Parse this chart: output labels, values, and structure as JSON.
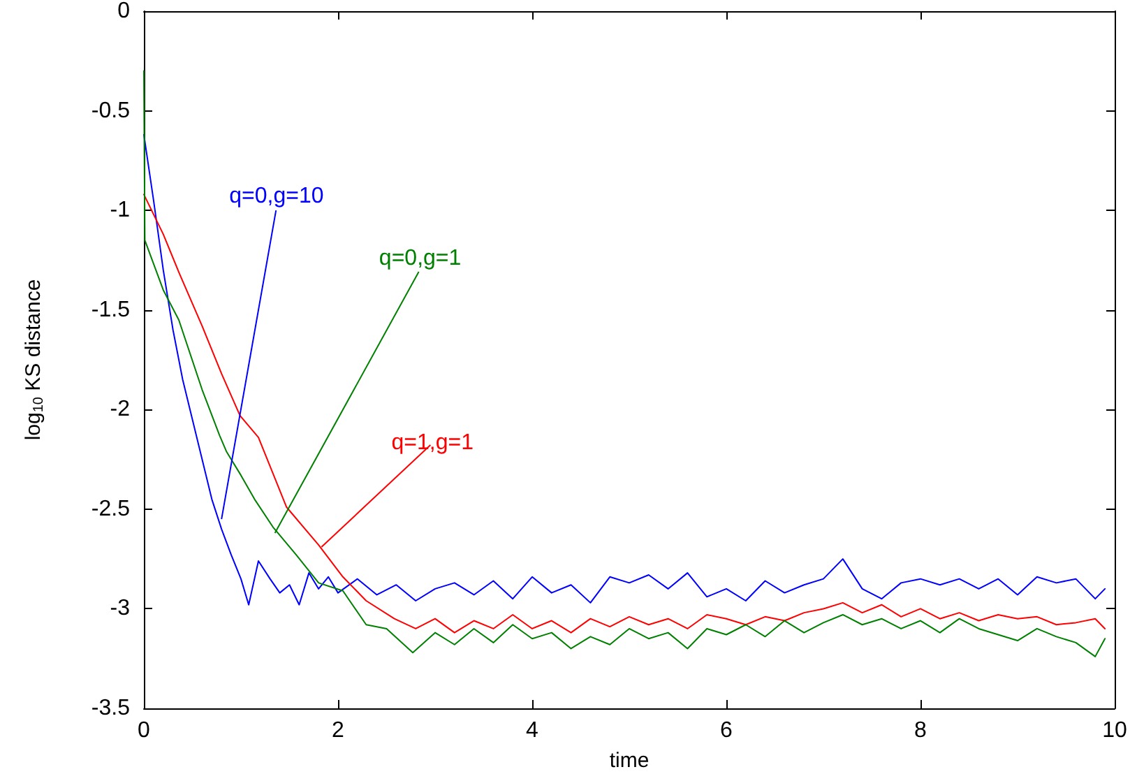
{
  "chart_data": {
    "type": "line",
    "xlabel": "time",
    "ylabel": "log$_{10}$ KS distance",
    "xlim": [
      0,
      10
    ],
    "xticks": [
      0,
      2,
      4,
      6,
      8,
      10
    ],
    "ylim": [
      -3.5,
      0
    ],
    "yticks": [
      -3.5,
      -3,
      -2.5,
      -2,
      -1.5,
      -1,
      -0.5,
      0
    ],
    "line_style": "solid",
    "series": [
      {
        "color": "#0000ff",
        "x": [
          0,
          0.1,
          0.2,
          0.3,
          0.4,
          0.5,
          0.6,
          0.7,
          0.8,
          0.9,
          1.0,
          1.08,
          1.18,
          1.3,
          1.4,
          1.5,
          1.6,
          1.7,
          1.8,
          1.9,
          2.0,
          2.2,
          2.4,
          2.6,
          2.8,
          3.0,
          3.2,
          3.4,
          3.6,
          3.8,
          4.0,
          4.2,
          4.4,
          4.6,
          4.8,
          5.0,
          5.2,
          5.4,
          5.6,
          5.8,
          6.0,
          6.2,
          6.4,
          6.6,
          6.8,
          7.0,
          7.2,
          7.4,
          7.6,
          7.8,
          8.0,
          8.2,
          8.4,
          8.6,
          8.8,
          9.0,
          9.2,
          9.4,
          9.6,
          9.8,
          9.9
        ],
        "values": [
          -0.62,
          -0.95,
          -1.3,
          -1.6,
          -1.85,
          -2.05,
          -2.25,
          -2.45,
          -2.6,
          -2.73,
          -2.85,
          -2.98,
          -2.76,
          -2.85,
          -2.92,
          -2.88,
          -2.98,
          -2.82,
          -2.9,
          -2.84,
          -2.92,
          -2.85,
          -2.93,
          -2.88,
          -2.96,
          -2.9,
          -2.87,
          -2.93,
          -2.86,
          -2.95,
          -2.84,
          -2.92,
          -2.88,
          -2.97,
          -2.84,
          -2.87,
          -2.83,
          -2.9,
          -2.82,
          -2.94,
          -2.9,
          -2.96,
          -2.86,
          -2.92,
          -2.88,
          -2.85,
          -2.75,
          -2.9,
          -2.95,
          -2.87,
          -2.85,
          -2.88,
          -2.85,
          -2.9,
          -2.85,
          -2.93,
          -2.84,
          -2.87,
          -2.85,
          -2.95,
          -2.9
        ]
      },
      {
        "color": "#ff0000",
        "x": [
          0,
          0.2,
          0.36,
          0.6,
          0.8,
          0.99,
          1.18,
          1.47,
          1.8,
          2.05,
          2.29,
          2.58,
          2.8,
          3.0,
          3.2,
          3.4,
          3.6,
          3.8,
          4.0,
          4.2,
          4.4,
          4.6,
          4.8,
          5.0,
          5.2,
          5.4,
          5.6,
          5.8,
          6.0,
          6.2,
          6.4,
          6.6,
          6.8,
          7.0,
          7.2,
          7.4,
          7.6,
          7.8,
          8.0,
          8.2,
          8.4,
          8.6,
          8.8,
          9.0,
          9.2,
          9.4,
          9.6,
          9.8,
          9.9
        ],
        "values": [
          -0.92,
          -1.12,
          -1.31,
          -1.58,
          -1.82,
          -2.03,
          -2.14,
          -2.49,
          -2.68,
          -2.84,
          -2.96,
          -3.05,
          -3.1,
          -3.05,
          -3.12,
          -3.06,
          -3.1,
          -3.03,
          -3.1,
          -3.06,
          -3.12,
          -3.05,
          -3.09,
          -3.04,
          -3.08,
          -3.05,
          -3.1,
          -3.03,
          -3.05,
          -3.08,
          -3.04,
          -3.06,
          -3.02,
          -3.0,
          -2.97,
          -3.02,
          -2.98,
          -3.04,
          -3.0,
          -3.05,
          -3.02,
          -3.06,
          -3.03,
          -3.05,
          -3.04,
          -3.08,
          -3.07,
          -3.05,
          -3.1
        ]
      },
      {
        "color": "#008000",
        "x": [
          0,
          0.01,
          0.2,
          0.36,
          0.6,
          0.78,
          0.85,
          1.0,
          1.14,
          1.33,
          1.57,
          1.8,
          2.05,
          2.29,
          2.5,
          2.77,
          3.0,
          3.2,
          3.4,
          3.6,
          3.8,
          4.0,
          4.2,
          4.4,
          4.6,
          4.8,
          5.0,
          5.2,
          5.4,
          5.6,
          5.8,
          6.0,
          6.2,
          6.4,
          6.6,
          6.8,
          7.0,
          7.2,
          7.4,
          7.6,
          7.8,
          8.0,
          8.2,
          8.4,
          8.6,
          8.8,
          9.0,
          9.2,
          9.4,
          9.6,
          9.8,
          9.9
        ],
        "values": [
          -0.3,
          -1.15,
          -1.4,
          -1.55,
          -1.9,
          -2.13,
          -2.21,
          -2.33,
          -2.45,
          -2.59,
          -2.73,
          -2.87,
          -2.91,
          -3.08,
          -3.1,
          -3.22,
          -3.12,
          -3.18,
          -3.1,
          -3.17,
          -3.08,
          -3.15,
          -3.12,
          -3.2,
          -3.14,
          -3.18,
          -3.1,
          -3.15,
          -3.12,
          -3.2,
          -3.1,
          -3.13,
          -3.08,
          -3.14,
          -3.06,
          -3.12,
          -3.07,
          -3.03,
          -3.08,
          -3.05,
          -3.1,
          -3.06,
          -3.12,
          -3.05,
          -3.1,
          -3.13,
          -3.16,
          -3.1,
          -3.14,
          -3.17,
          -3.24,
          -3.15
        ]
      }
    ],
    "annotations": [
      {
        "text": "q=0,g=10",
        "x": 0.8,
        "y": -2.55
      },
      {
        "text": "q=0,g=1",
        "x": 1.35,
        "y": -2.62
      },
      {
        "text": "q=1,g=1",
        "x": 1.83,
        "y": -2.69
      }
    ]
  }
}
